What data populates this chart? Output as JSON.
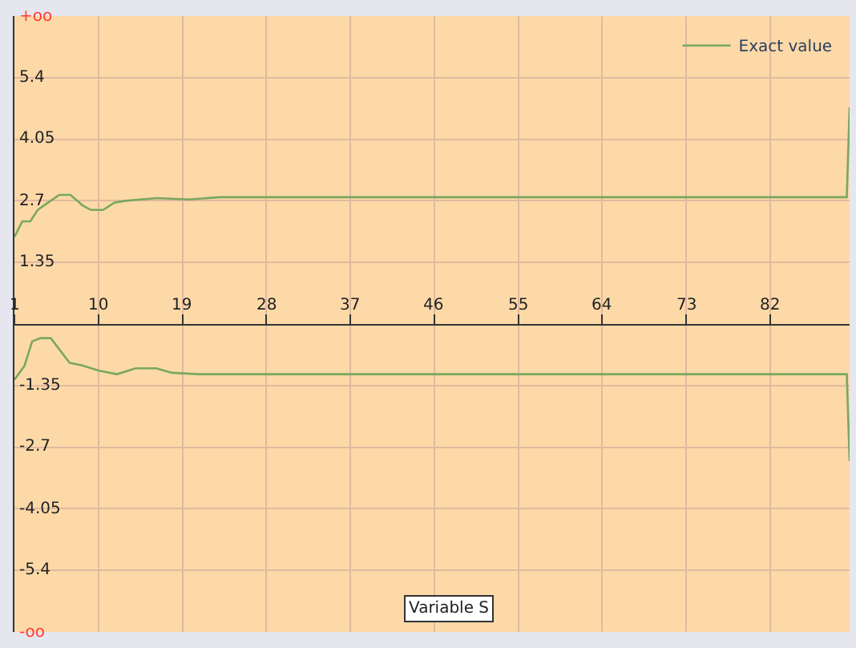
{
  "chart_data": {
    "type": "line",
    "xlabel": "Variable S",
    "xlim": [
      1,
      90.5
    ],
    "xticks": [
      1,
      10,
      19,
      28,
      37,
      46,
      55,
      64,
      73,
      82
    ],
    "ylim": [
      -6.75,
      6.75
    ],
    "yticks": [
      {
        "value": -6.75,
        "label": "-oo"
      },
      -5.4,
      -4.05,
      -2.7,
      -1.35,
      {
        "value": 1.35,
        "label": "1.35"
      },
      2.7,
      4.05,
      5.4,
      {
        "value": 6.75,
        "label": "+oo"
      }
    ],
    "grid": true,
    "legend": "top right",
    "series": [
      {
        "name": "Exact value",
        "color": "#78a85e",
        "x": [
          1,
          1.85,
          2.7,
          3.5,
          4.6,
          5.8,
          7,
          8.3,
          9.2,
          10.5,
          11.7,
          12.9,
          16.3,
          19.7,
          23,
          90.2,
          90.5
        ],
        "values": [
          1.91,
          2.25,
          2.25,
          2.5,
          2.66,
          2.83,
          2.83,
          2.6,
          2.5,
          2.5,
          2.66,
          2.7,
          2.76,
          2.73,
          2.78,
          2.78,
          4.75
        ]
      },
      {
        "color": "#78a85e",
        "x": [
          1,
          2.07,
          2.9,
          3.8,
          4.9,
          6.9,
          8.3,
          10,
          12,
          14,
          16.2,
          17.9,
          20.8,
          24.2,
          90.2,
          90.5
        ],
        "values": [
          -1.22,
          -0.92,
          -0.38,
          -0.31,
          -0.31,
          -0.85,
          -0.91,
          -1.02,
          -1.1,
          -0.97,
          -0.97,
          -1.07,
          -1.1,
          -1.1,
          -1.1,
          -3.0
        ]
      }
    ]
  }
}
